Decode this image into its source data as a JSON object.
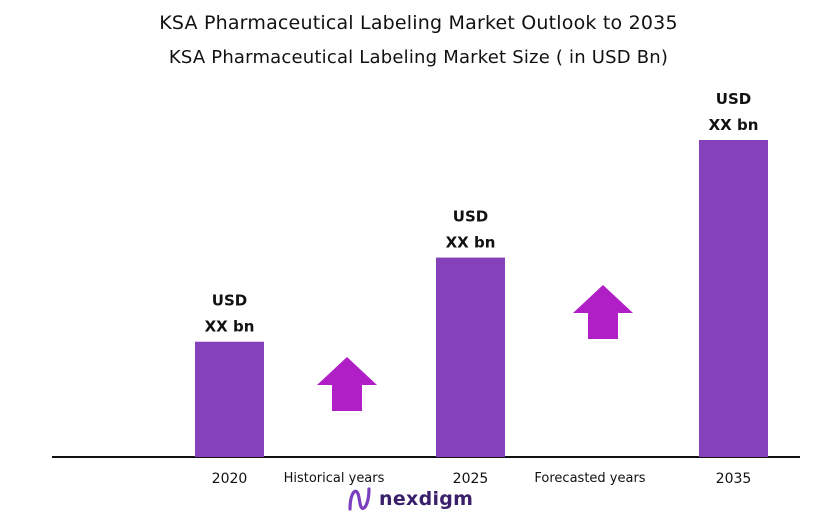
{
  "colors": {
    "bar": "#8541b9",
    "arrow": "#b01ec5",
    "axis": "#111111",
    "text": "#111111"
  },
  "brand": {
    "name": "nexdigm",
    "icon": "nexdigm-logo-icon"
  },
  "chart_data": {
    "type": "bar",
    "title": "KSA Pharmaceutical Labeling Market Outlook to 2035",
    "subtitle": "KSA Pharmaceutical Labeling Market Size  ( in USD Bn)",
    "categories": [
      "2020",
      "2025",
      "2035"
    ],
    "values": [
      1.0,
      1.73,
      2.75
    ],
    "data_labels": [
      [
        "USD",
        "XX bn"
      ],
      [
        "USD",
        "XX bn"
      ],
      [
        "USD",
        "XX bn"
      ]
    ],
    "annotations": [
      "Historical years",
      "Forecasted years"
    ],
    "ylim": [
      0,
      3
    ],
    "grid": false,
    "legend": "none"
  }
}
